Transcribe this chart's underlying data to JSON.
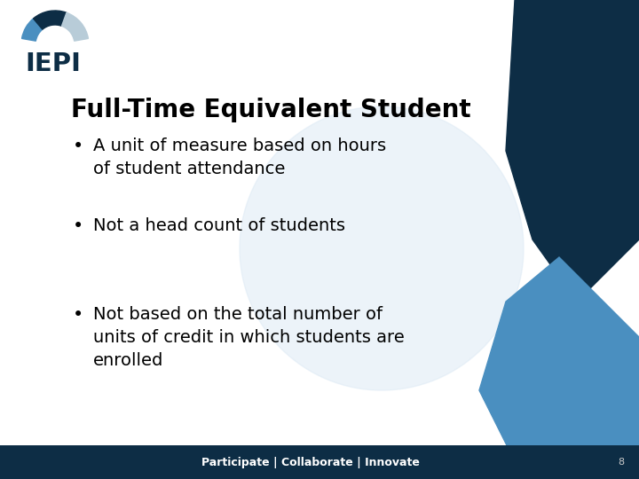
{
  "title": "Full-Time Equivalent Student",
  "bullets": [
    "A unit of measure based on hours\nof student attendance",
    "Not a head count of students",
    "Not based on the total number of\nunits of credit in which students are\nenrolled"
  ],
  "footer_text": "Participate | Collaborate | Innovate",
  "page_number": "8",
  "bg_color": "#ffffff",
  "footer_bg": "#0d2d45",
  "title_color": "#000000",
  "bullet_color": "#000000",
  "footer_text_color": "#ffffff",
  "page_num_color": "#cccccc",
  "accent_blue_light": "#4a8fc0",
  "accent_blue_dark": "#0d2d45",
  "accent_bg_ellipse": "#ddeaf5",
  "logo_arc_blue": "#4a8fc0",
  "logo_arc_dark": "#0d2d45",
  "logo_arc_grey": "#b8ccd8",
  "logo_text_color": "#0d2d45",
  "title_fontsize": 20,
  "bullet_fontsize": 14,
  "footer_fontsize": 9
}
